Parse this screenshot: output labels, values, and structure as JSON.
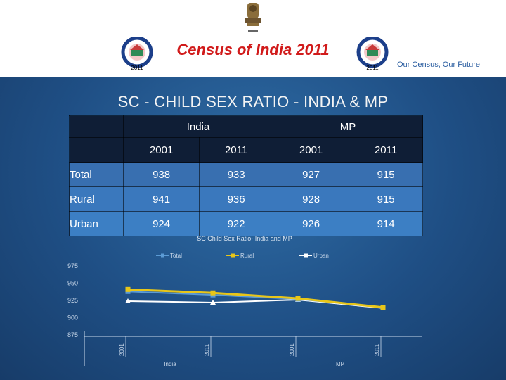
{
  "header": {
    "emblem_icon": "national-emblem-icon",
    "logo_icon": "census-logo-icon",
    "logo_year": "2011",
    "title": "Census of India 2011",
    "motto": "Our Census, Our Future"
  },
  "slide_title": "SC - CHILD SEX RATIO - INDIA & MP",
  "table": {
    "groups": [
      "India",
      "MP"
    ],
    "years": [
      "2001",
      "2011",
      "2001",
      "2011"
    ],
    "rows": [
      {
        "label": "Total",
        "values": [
          "938",
          "933",
          "927",
          "915"
        ]
      },
      {
        "label": "Rural",
        "values": [
          "941",
          "936",
          "928",
          "915"
        ]
      },
      {
        "label": "Urban",
        "values": [
          "924",
          "922",
          "926",
          "914"
        ]
      }
    ]
  },
  "chart_data": {
    "type": "line",
    "title": "SC Child Sex Ratio- India and MP",
    "x": [
      "2001",
      "2011",
      "2001",
      "2011"
    ],
    "x_groups": [
      "India",
      "MP"
    ],
    "series": [
      {
        "name": "Total",
        "values": [
          938,
          933,
          927,
          915
        ],
        "color": "#5b9bd5"
      },
      {
        "name": "Rural",
        "values": [
          941,
          936,
          928,
          915
        ],
        "color": "#e8c619"
      },
      {
        "name": "Urban",
        "values": [
          924,
          922,
          926,
          914
        ],
        "color": "#ffffff"
      }
    ],
    "y_ticks": [
      "975",
      "950",
      "925",
      "900",
      "875"
    ],
    "ylim": [
      875,
      975
    ],
    "legend": "top",
    "grid": false
  }
}
